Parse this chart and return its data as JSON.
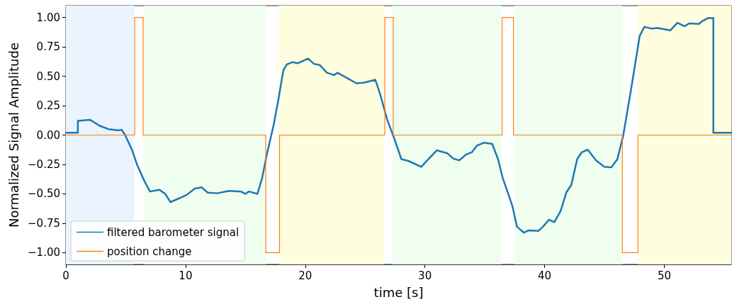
{
  "chart_data": {
    "type": "line",
    "xlabel": "time [s]",
    "ylabel": "Normalized Signal Amplitude",
    "xlim": [
      0,
      55.6
    ],
    "xticks": [
      0,
      10,
      20,
      30,
      40,
      50
    ],
    "ylim": [
      -1.1,
      1.1
    ],
    "yticks": [
      {
        "value": -1,
        "label": "−1.00"
      },
      {
        "value": -0.75,
        "label": "−0.75"
      },
      {
        "value": -0.5,
        "label": "−0.50"
      },
      {
        "value": -0.25,
        "label": "−0.25"
      },
      {
        "value": 0,
        "label": "0.00"
      },
      {
        "value": 0.25,
        "label": "0.25"
      },
      {
        "value": 0.5,
        "label": "0.50"
      },
      {
        "value": 0.75,
        "label": "0.75"
      },
      {
        "value": 1,
        "label": "1.00"
      }
    ],
    "grid": false,
    "legend": "bottom left",
    "marker": "none",
    "line_style": "solid",
    "bands": [
      {
        "axis": "x",
        "from": 0,
        "to": 5.7,
        "color": "#eaf4fe"
      },
      {
        "axis": "x",
        "from": 6.5,
        "to": 16.7,
        "color": "#effeee"
      },
      {
        "axis": "x",
        "from": 17.8,
        "to": 26.6,
        "color": "#fefede"
      },
      {
        "axis": "x",
        "from": 27.3,
        "to": 36.4,
        "color": "#effeee"
      },
      {
        "axis": "x",
        "from": 37.5,
        "to": 46.5,
        "color": "#effeee"
      },
      {
        "axis": "x",
        "from": 47.8,
        "to": 55.6,
        "color": "#fefede"
      }
    ],
    "series": [
      {
        "name": "filtered barometer signal",
        "color": "#1f77b4",
        "x": [
          0,
          1.0,
          1.0,
          2.0,
          2.8,
          3.55,
          4.36,
          4.65,
          4.95,
          5.54,
          5.94,
          6.53,
          7.02,
          7.81,
          8.3,
          8.74,
          9.19,
          10.08,
          10.77,
          11.36,
          11.85,
          12.64,
          13.63,
          14.62,
          15.0,
          15.3,
          16.0,
          16.4,
          16.79,
          17.37,
          17.77,
          18.17,
          18.46,
          18.95,
          19.35,
          20.24,
          20.73,
          21.22,
          21.81,
          22.41,
          22.7,
          23.39,
          24.28,
          24.87,
          25.86,
          26.25,
          26.85,
          27.44,
          28.03,
          28.62,
          29.7,
          30.1,
          30.99,
          31.87,
          32.37,
          32.86,
          33.45,
          33.94,
          34.34,
          34.93,
          35.62,
          36.11,
          36.5,
          37.3,
          37.69,
          38.28,
          38.68,
          39.47,
          39.86,
          40.36,
          40.81,
          41.34,
          41.83,
          42.23,
          42.72,
          43.12,
          43.61,
          44.3,
          44.99,
          45.58,
          46.08,
          46.57,
          47.26,
          47.95,
          48.34,
          48.93,
          49.43,
          50.5,
          51.1,
          51.7,
          52.1,
          52.88,
          53.2,
          53.67,
          54.1,
          54.1,
          55.6
        ],
        "values": [
          0.02,
          0.02,
          0.12,
          0.13,
          0.08,
          0.05,
          0.04,
          0.045,
          0.0,
          -0.13,
          -0.25,
          -0.385,
          -0.48,
          -0.465,
          -0.5,
          -0.57,
          -0.55,
          -0.51,
          -0.455,
          -0.445,
          -0.49,
          -0.495,
          -0.475,
          -0.48,
          -0.5,
          -0.48,
          -0.5,
          -0.365,
          -0.165,
          0.09,
          0.31,
          0.55,
          0.6,
          0.62,
          0.61,
          0.65,
          0.605,
          0.595,
          0.53,
          0.51,
          0.53,
          0.49,
          0.44,
          0.445,
          0.47,
          0.35,
          0.13,
          -0.03,
          -0.205,
          -0.22,
          -0.27,
          -0.225,
          -0.13,
          -0.155,
          -0.2,
          -0.215,
          -0.165,
          -0.145,
          -0.09,
          -0.065,
          -0.075,
          -0.205,
          -0.365,
          -0.6,
          -0.78,
          -0.83,
          -0.81,
          -0.815,
          -0.78,
          -0.72,
          -0.74,
          -0.645,
          -0.485,
          -0.425,
          -0.205,
          -0.145,
          -0.125,
          -0.215,
          -0.27,
          -0.275,
          -0.205,
          -0.005,
          0.41,
          0.845,
          0.92,
          0.905,
          0.91,
          0.89,
          0.955,
          0.925,
          0.95,
          0.945,
          0.97,
          0.995,
          0.995,
          0.02,
          0.02
        ]
      },
      {
        "name": "position change",
        "color": "#ff7f0e",
        "x": [
          0,
          5.75,
          5.75,
          6.45,
          6.45,
          16.7,
          16.7,
          17.85,
          17.85,
          26.65,
          26.65,
          27.35,
          27.35,
          36.45,
          36.45,
          37.4,
          37.4,
          46.5,
          46.5,
          47.8,
          47.8,
          55.6
        ],
        "values": [
          0,
          0,
          1,
          1,
          0,
          0,
          -1,
          -1,
          0,
          0,
          1,
          1,
          0,
          0,
          1,
          1,
          0,
          0,
          -1,
          -1,
          0,
          0
        ]
      }
    ]
  }
}
